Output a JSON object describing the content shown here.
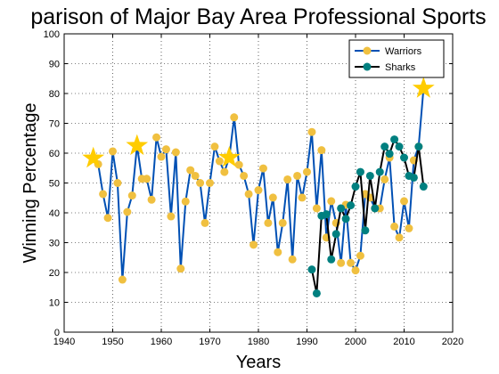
{
  "chart_data": {
    "type": "line",
    "title": "parison of Major Bay Area Professional Sports",
    "xlabel": "Years",
    "ylabel": "Winning Percentage",
    "xlim": [
      1940,
      2020
    ],
    "ylim": [
      0,
      100
    ],
    "xticks": [
      1940,
      1950,
      1960,
      1970,
      1980,
      1990,
      2000,
      2010,
      2020
    ],
    "yticks": [
      0,
      10,
      20,
      30,
      40,
      50,
      60,
      70,
      80,
      90,
      100
    ],
    "grid": true,
    "legend_position": "top-right",
    "series": [
      {
        "name": "Warriors",
        "line_color": "#0050b4",
        "marker_color": "#f0c040",
        "x": [
          1946,
          1947,
          1948,
          1949,
          1950,
          1951,
          1952,
          1953,
          1954,
          1955,
          1956,
          1957,
          1958,
          1959,
          1960,
          1961,
          1962,
          1963,
          1964,
          1965,
          1966,
          1967,
          1968,
          1969,
          1970,
          1971,
          1972,
          1973,
          1974,
          1975,
          1976,
          1977,
          1978,
          1979,
          1980,
          1981,
          1982,
          1983,
          1984,
          1985,
          1986,
          1987,
          1988,
          1989,
          1990,
          1991,
          1992,
          1993,
          1994,
          1995,
          1996,
          1997,
          1998,
          1999,
          2000,
          2001,
          2002,
          2003,
          2004,
          2005,
          2006,
          2007,
          2008,
          2009,
          2010,
          2011,
          2012,
          2013,
          2014
        ],
        "y": [
          58.3,
          56.3,
          46.3,
          38.3,
          60.6,
          50.0,
          17.6,
          40.3,
          45.8,
          62.5,
          51.4,
          51.4,
          44.4,
          65.3,
          58.8,
          61.3,
          38.8,
          60.3,
          21.3,
          43.8,
          54.3,
          52.4,
          50.0,
          36.6,
          50.0,
          62.2,
          57.3,
          53.7,
          58.5,
          72.0,
          56.1,
          52.4,
          46.3,
          29.3,
          47.6,
          54.9,
          36.6,
          45.1,
          26.8,
          36.6,
          51.2,
          24.4,
          52.4,
          45.1,
          53.7,
          67.1,
          41.5,
          61.0,
          31.7,
          43.9,
          36.6,
          23.2,
          42.7,
          23.2,
          20.7,
          25.6,
          46.3,
          45.1,
          41.5,
          41.5,
          51.2,
          58.5,
          35.4,
          31.7,
          43.9,
          34.8,
          57.6,
          62.2,
          81.7
        ]
      },
      {
        "name": "Sharks",
        "line_color": "#000000",
        "marker_color": "#008080",
        "x": [
          1991,
          1992,
          1993,
          1994,
          1995,
          1996,
          1997,
          1998,
          1999,
          2000,
          2001,
          2002,
          2003,
          2004,
          2005,
          2006,
          2007,
          2008,
          2009,
          2010,
          2011,
          2012,
          2013,
          2014
        ],
        "y": [
          21.0,
          13.0,
          39.0,
          39.5,
          24.4,
          32.9,
          41.5,
          38.0,
          42.5,
          48.8,
          53.7,
          34.1,
          52.4,
          41.5,
          53.7,
          62.2,
          59.8,
          64.6,
          62.2,
          58.5,
          52.4,
          51.8,
          62.2,
          48.8
        ]
      }
    ],
    "highlights": [
      {
        "series": "Warriors",
        "x": 1946,
        "y": 58.3,
        "marker": "star",
        "color": "#ffcc00"
      },
      {
        "series": "Warriors",
        "x": 1955,
        "y": 62.5,
        "marker": "star",
        "color": "#ffcc00"
      },
      {
        "series": "Warriors",
        "x": 1974,
        "y": 58.5,
        "marker": "star",
        "color": "#ffcc00"
      },
      {
        "series": "Warriors",
        "x": 2014,
        "y": 81.7,
        "marker": "star",
        "color": "#ffcc00"
      }
    ]
  }
}
